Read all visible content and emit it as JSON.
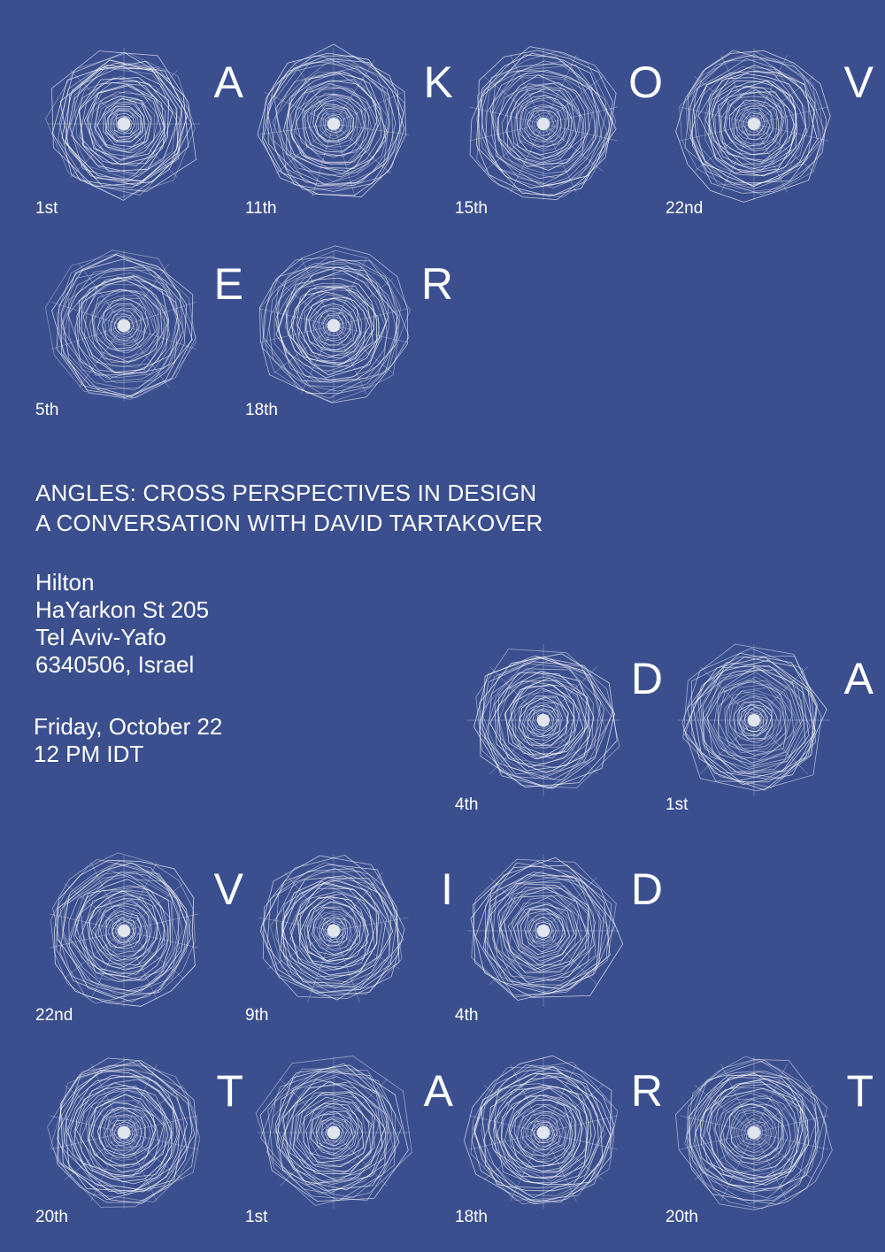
{
  "glyphs": [
    {
      "letter": "A",
      "ordinal": "1st",
      "sides": 8,
      "seed": 1
    },
    {
      "letter": "K",
      "ordinal": "11th",
      "sides": 11,
      "seed": 11
    },
    {
      "letter": "O",
      "ordinal": "15th",
      "sides": 15,
      "seed": 15
    },
    {
      "letter": "V",
      "ordinal": "22nd",
      "sides": 22,
      "seed": 22
    },
    {
      "letter": "E",
      "ordinal": "5th",
      "sides": 10,
      "seed": 5
    },
    {
      "letter": "R",
      "ordinal": "18th",
      "sides": 18,
      "seed": 18
    },
    {
      "letter": "D",
      "ordinal": "4th",
      "sides": 8,
      "seed": 4
    },
    {
      "letter": "A",
      "ordinal": "1st",
      "sides": 8,
      "seed": 31
    },
    {
      "letter": "V",
      "ordinal": "22nd",
      "sides": 22,
      "seed": 42
    },
    {
      "letter": "I",
      "ordinal": "9th",
      "sides": 9,
      "seed": 9
    },
    {
      "letter": "D",
      "ordinal": "4th",
      "sides": 8,
      "seed": 14
    },
    {
      "letter": "T",
      "ordinal": "20th",
      "sides": 20,
      "seed": 20
    },
    {
      "letter": "A",
      "ordinal": "1st",
      "sides": 8,
      "seed": 61
    },
    {
      "letter": "R",
      "ordinal": "18th",
      "sides": 18,
      "seed": 38
    },
    {
      "letter": "T",
      "ordinal": "20th",
      "sides": 20,
      "seed": 50
    }
  ],
  "event": {
    "title_line1": "ANGLES: CROSS PERSPECTIVES IN DESIGN",
    "title_line2": "A CONVERSATION WITH DAVID TARTAKOVER",
    "venue": "Hilton",
    "street": "HaYarkon St 205",
    "city": "Tel Aviv-Yafo",
    "postal_country": "6340506, Israel",
    "date": "Friday, October 22",
    "time": "12 PM IDT"
  },
  "colors": {
    "background": "#3b4f8f",
    "foreground": "#ffffff"
  }
}
